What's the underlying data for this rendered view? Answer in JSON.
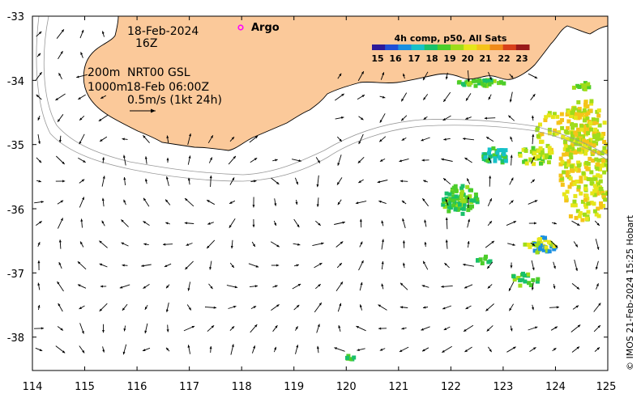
{
  "map": {
    "x_ticks": [
      "114",
      "115",
      "116",
      "117",
      "118",
      "119",
      "120",
      "121",
      "122",
      "123",
      "124",
      "125"
    ],
    "y_ticks": [
      "-33",
      "-34",
      "-35",
      "-36",
      "-37",
      "-38"
    ],
    "lon_range": [
      114,
      125
    ],
    "lat_range": [
      -38.5,
      -33
    ]
  },
  "info": {
    "date": "18-Feb-2024",
    "hour": "16Z",
    "depth_line1": "200m",
    "depth_line2": "1000m",
    "product": "NRT00 GSL",
    "product_time": "18-Feb 06:00Z",
    "scale_label": "0.5m/s (1kt 24h)"
  },
  "legend": {
    "argo_label": "Argo",
    "argo_color": "#ff00ff"
  },
  "colorbar": {
    "title": "4h comp, p50, All Sats",
    "ticks": [
      "15",
      "16",
      "17",
      "18",
      "19",
      "20",
      "21",
      "22",
      "23"
    ],
    "colors": [
      "#2b1a9a",
      "#1f4fd6",
      "#1a8fe0",
      "#17c1c8",
      "#19c06a",
      "#4ccd2a",
      "#9fdc1a",
      "#e6e61a",
      "#f5c31a",
      "#f08a1a",
      "#d8401a",
      "#9a1a1a"
    ]
  },
  "credit": "© IMOS 21-Feb-2024 15:25 Hobart",
  "colors": {
    "land": "#fbc99a",
    "coast": "#000000",
    "isobath": "#999999"
  }
}
